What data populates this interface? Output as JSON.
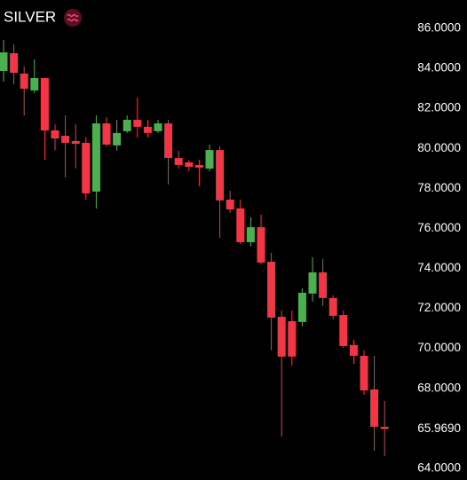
{
  "chart_data": {
    "type": "candlestick",
    "title": "SILVER",
    "up_color": "#4caf50",
    "down_color": "#f23645",
    "open": [
      83.87,
      84.76,
      83.74,
      82.9,
      83.52,
      80.9,
      80.63,
      80.37,
      80.28,
      77.84,
      81.25,
      80.15,
      80.86,
      81.43,
      81.08,
      80.86,
      81.25,
      79.52,
      79.3,
      79.17,
      78.99,
      79.92,
      77.44,
      77.0,
      75.31,
      76.06,
      74.33,
      71.58,
      71.36,
      71.32,
      72.74,
      73.8,
      72.52,
      71.67,
      70.17,
      69.63,
      67.95,
      66.08
    ],
    "high": [
      85.42,
      85.2,
      84.1,
      84.45,
      83.52,
      81.2,
      81.65,
      81.2,
      80.55,
      81.65,
      81.56,
      81.43,
      81.65,
      82.54,
      81.43,
      81.43,
      81.43,
      79.88,
      79.43,
      79.43,
      80.19,
      80.1,
      77.88,
      77.44,
      76.55,
      76.69,
      74.78,
      71.9,
      71.9,
      73.0,
      74.56,
      74.47,
      72.65,
      71.9,
      70.43,
      69.9,
      69.63,
      67.37
    ],
    "low": [
      83.34,
      83.2,
      81.65,
      82.76,
      79.43,
      79.9,
      78.55,
      79.0,
      77.44,
      77.0,
      80.1,
      79.88,
      80.77,
      80.55,
      80.55,
      80.77,
      78.19,
      78.99,
      78.86,
      78.1,
      78.86,
      75.53,
      76.77,
      75.22,
      75.1,
      74.2,
      69.9,
      65.6,
      69.15,
      71.1,
      72.34,
      72.12,
      71.45,
      70.03,
      69.23,
      67.68,
      64.89,
      64.62
    ],
    "close": [
      84.8,
      83.78,
      82.98,
      83.52,
      80.9,
      80.5,
      80.28,
      80.23,
      77.75,
      81.25,
      80.19,
      80.77,
      81.43,
      81.08,
      80.77,
      81.25,
      79.52,
      79.17,
      79.08,
      79.04,
      79.92,
      77.4,
      76.95,
      75.31,
      76.06,
      74.29,
      71.54,
      69.59,
      69.59,
      72.78,
      73.8,
      72.52,
      71.63,
      70.12,
      69.63,
      67.9,
      66.08,
      65.97
    ],
    "ylim": [
      63.42,
      87.42
    ],
    "yticks": [
      {
        "value": 86,
        "label": "86.0000"
      },
      {
        "value": 84,
        "label": "84.0000"
      },
      {
        "value": 82,
        "label": "82.0000"
      },
      {
        "value": 80,
        "label": "80.0000"
      },
      {
        "value": 78,
        "label": "78.0000"
      },
      {
        "value": 76,
        "label": "76.0000"
      },
      {
        "value": 74,
        "label": "74.0000"
      },
      {
        "value": 72,
        "label": "72.0000"
      },
      {
        "value": 70,
        "label": "70.0000"
      },
      {
        "value": 68,
        "label": "68.0000"
      },
      {
        "value": 64,
        "label": "64.0000"
      }
    ],
    "last_price": {
      "value": 65.969,
      "label": "65.9690"
    },
    "grid": false
  }
}
